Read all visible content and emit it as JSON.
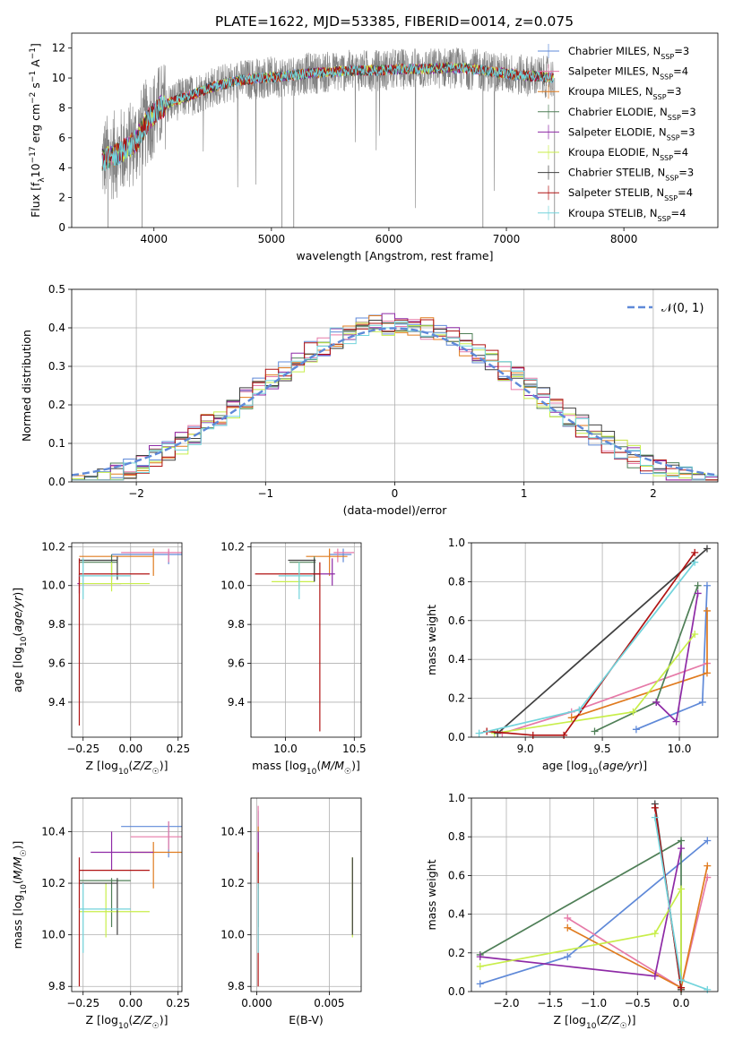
{
  "figure": {
    "title": "PLATE=1622, MJD=53385, FIBERID=0014, z=0.075",
    "models": [
      {
        "name": "Chabrier MILES, N_SSP=3",
        "color": "#5f89d8"
      },
      {
        "name": "Salpeter MILES, N_SSP=4",
        "color": "#e67aa8"
      },
      {
        "name": "Kroupa MILES, N_SSP=3",
        "color": "#e07b1f"
      },
      {
        "name": "Chabrier ELODIE, N_SSP=3",
        "color": "#4f7f57"
      },
      {
        "name": "Salpeter ELODIE, N_SSP=3",
        "color": "#8e2aa6"
      },
      {
        "name": "Kroupa ELODIE, N_SSP=4",
        "color": "#c8ee4a"
      },
      {
        "name": "Chabrier STELIB, N_SSP=3",
        "color": "#404040"
      },
      {
        "name": "Salpeter STELIB, N_SSP=4",
        "color": "#b01313"
      },
      {
        "name": "Kroupa STELIB, N_SSP=4",
        "color": "#72d4dc"
      }
    ]
  },
  "chart_data": [
    {
      "id": "spectrum",
      "type": "line",
      "xlabel": "wavelength [Angstrom, rest frame]",
      "ylabel": "Flux [fλ10^-17 erg cm^-2 s^-1 A^-1]",
      "xlim": [
        3300,
        8800
      ],
      "ylim": [
        0,
        13
      ],
      "xticks": [
        4000,
        5000,
        6000,
        7000,
        8000
      ],
      "yticks": [
        0,
        2,
        4,
        6,
        8,
        10,
        12
      ],
      "legend_position": "right",
      "legend": [
        {
          "prefix": "Chabrier MILES, N",
          "sub": "SSP",
          "suffix": "=3"
        },
        {
          "prefix": "Salpeter MILES, N",
          "sub": "SSP",
          "suffix": "=4"
        },
        {
          "prefix": "Kroupa MILES, N",
          "sub": "SSP",
          "suffix": "=3"
        },
        {
          "prefix": "Chabrier ELODIE, N",
          "sub": "SSP",
          "suffix": "=3"
        },
        {
          "prefix": "Salpeter ELODIE, N",
          "sub": "SSP",
          "suffix": "=3"
        },
        {
          "prefix": "Kroupa ELODIE, N",
          "sub": "SSP",
          "suffix": "=4"
        },
        {
          "prefix": "Chabrier STELIB, N",
          "sub": "SSP",
          "suffix": "=3"
        },
        {
          "prefix": "Salpeter STELIB, N",
          "sub": "SSP",
          "suffix": "=4"
        },
        {
          "prefix": "Kroupa STELIB, N",
          "sub": "SSP",
          "suffix": "=4"
        }
      ],
      "data_color": "#808080",
      "continuum": [
        [
          3560,
          4.5
        ],
        [
          3650,
          4.8
        ],
        [
          3750,
          5.2
        ],
        [
          3850,
          5.8
        ],
        [
          3950,
          7.2
        ],
        [
          4050,
          8.0
        ],
        [
          4150,
          8.4
        ],
        [
          4300,
          8.8
        ],
        [
          4500,
          9.4
        ],
        [
          4700,
          9.8
        ],
        [
          4900,
          10.0
        ],
        [
          5100,
          10.1
        ],
        [
          5300,
          10.3
        ],
        [
          5500,
          10.4
        ],
        [
          5700,
          10.5
        ],
        [
          5900,
          10.5
        ],
        [
          6100,
          10.6
        ],
        [
          6300,
          10.6
        ],
        [
          6500,
          10.7
        ],
        [
          6700,
          10.6
        ],
        [
          6900,
          10.4
        ],
        [
          7100,
          10.2
        ],
        [
          7300,
          10.1
        ],
        [
          7400,
          10.0
        ]
      ]
    },
    {
      "id": "residuals",
      "type": "histogram",
      "xlabel": "(data-model)/error",
      "ylabel": "Normed distribution",
      "xlim": [
        -2.5,
        2.5
      ],
      "ylim": [
        0,
        0.5
      ],
      "xticks": [
        -2,
        -1,
        0,
        1,
        2
      ],
      "yticks": [
        0.0,
        0.1,
        0.2,
        0.3,
        0.4,
        0.5
      ],
      "legend": "𝒩(0, 1)",
      "legend_position": "upper right",
      "gaussian": {
        "mean": 0,
        "sigma": 1,
        "color": "#5f89d8"
      },
      "bin_width": 0.1
    },
    {
      "id": "age-Z",
      "type": "errorbar",
      "xlabel": "Z [log10(Z/Z☉)]",
      "ylabel": "age  [log10(age/yr)]",
      "xlim": [
        -0.31,
        0.27
      ],
      "ylim": [
        9.22,
        10.22
      ],
      "xticks": [
        -0.25,
        0.0,
        0.25
      ],
      "yticks": [
        9.4,
        9.6,
        9.8,
        10.0,
        10.2
      ],
      "points": [
        {
          "x": 0.2,
          "xlo": -0.1,
          "xhi": 0.27,
          "y": 10.16,
          "ylo": 10.11,
          "yhi": 10.18
        },
        {
          "x": 0.2,
          "xlo": -0.05,
          "xhi": 0.27,
          "y": 10.17,
          "ylo": 10.12,
          "yhi": 10.19
        },
        {
          "x": 0.12,
          "xlo": -0.27,
          "xhi": 0.12,
          "y": 10.15,
          "ylo": 10.05,
          "yhi": 10.19
        },
        {
          "x": -0.1,
          "xlo": -0.27,
          "xhi": -0.07,
          "y": 10.12,
          "ylo": 10.03,
          "yhi": 10.16
        },
        {
          "x": -0.27,
          "xlo": -0.28,
          "xhi": -0.05,
          "y": 10.01,
          "ylo": 9.96,
          "yhi": 10.06
        },
        {
          "x": -0.1,
          "xlo": -0.27,
          "xhi": 0.1,
          "y": 10.01,
          "ylo": 9.97,
          "yhi": 10.12
        },
        {
          "x": -0.07,
          "xlo": -0.27,
          "xhi": -0.07,
          "y": 10.13,
          "ylo": 10.03,
          "yhi": 10.15
        },
        {
          "x": -0.27,
          "xlo": -0.27,
          "xhi": 0.1,
          "y": 10.06,
          "ylo": 9.28,
          "yhi": 10.14
        },
        {
          "x": -0.25,
          "xlo": -0.27,
          "xhi": 0.0,
          "y": 10.05,
          "ylo": 9.93,
          "yhi": 10.14
        }
      ]
    },
    {
      "id": "age-mass",
      "type": "errorbar",
      "xlabel": "mass [log10(M/M☉)]",
      "ylabel": "",
      "xlim": [
        9.75,
        10.55
      ],
      "ylim": [
        9.22,
        10.22
      ],
      "xticks": [
        10.0,
        10.5
      ],
      "yticks": [
        9.4,
        9.6,
        9.8,
        10.0,
        10.2
      ],
      "points": [
        {
          "x": 10.42,
          "xlo": 10.32,
          "xhi": 10.48,
          "y": 10.16,
          "ylo": 10.12,
          "yhi": 10.19
        },
        {
          "x": 10.38,
          "xlo": 10.35,
          "xhi": 10.5,
          "y": 10.17,
          "ylo": 10.12,
          "yhi": 10.19
        },
        {
          "x": 10.32,
          "xlo": 10.15,
          "xhi": 10.45,
          "y": 10.15,
          "ylo": 10.05,
          "yhi": 10.19
        },
        {
          "x": 10.21,
          "xlo": 10.03,
          "xhi": 10.22,
          "y": 10.12,
          "ylo": 10.02,
          "yhi": 10.15
        },
        {
          "x": 10.34,
          "xlo": 10.2,
          "xhi": 10.36,
          "y": 10.06,
          "ylo": 10.0,
          "yhi": 10.14
        },
        {
          "x": 10.1,
          "xlo": 9.9,
          "xhi": 10.21,
          "y": 10.02,
          "ylo": 9.98,
          "yhi": 10.12
        },
        {
          "x": 10.21,
          "xlo": 10.02,
          "xhi": 10.22,
          "y": 10.13,
          "ylo": 10.02,
          "yhi": 10.14
        },
        {
          "x": 10.25,
          "xlo": 9.78,
          "xhi": 10.25,
          "y": 10.06,
          "ylo": 9.25,
          "yhi": 10.12
        },
        {
          "x": 10.1,
          "xlo": 9.95,
          "xhi": 10.2,
          "y": 10.05,
          "ylo": 9.93,
          "yhi": 10.12
        }
      ]
    },
    {
      "id": "weight-age",
      "type": "line",
      "xlabel": "age  [log10(age/yr)]",
      "ylabel": "mass weight",
      "xlim": [
        8.65,
        10.25
      ],
      "ylim": [
        0,
        1
      ],
      "xticks": [
        9.0,
        9.5,
        10.0
      ],
      "yticks": [
        0.0,
        0.2,
        0.4,
        0.6,
        0.8,
        1.0
      ],
      "series": [
        {
          "points": [
            [
              9.72,
              0.04
            ],
            [
              10.15,
              0.18
            ],
            [
              10.18,
              0.78
            ]
          ]
        },
        {
          "points": [
            [
              8.85,
              0.02
            ],
            [
              9.3,
              0.13
            ],
            [
              10.18,
              0.38
            ]
          ]
        },
        {
          "points": [
            [
              9.3,
              0.1
            ],
            [
              10.18,
              0.33
            ],
            [
              10.18,
              0.65
            ]
          ]
        },
        {
          "points": [
            [
              9.45,
              0.03
            ],
            [
              9.85,
              0.18
            ],
            [
              10.12,
              0.78
            ]
          ]
        },
        {
          "points": [
            [
              9.85,
              0.18
            ],
            [
              9.98,
              0.08
            ],
            [
              10.12,
              0.74
            ]
          ]
        },
        {
          "points": [
            [
              8.8,
              0.02
            ],
            [
              9.7,
              0.13
            ],
            [
              10.1,
              0.53
            ]
          ]
        },
        {
          "points": [
            [
              8.82,
              0.02
            ],
            [
              10.18,
              0.97
            ]
          ]
        },
        {
          "points": [
            [
              8.75,
              0.03
            ],
            [
              9.05,
              0.01
            ],
            [
              9.25,
              0.01
            ],
            [
              10.1,
              0.95
            ]
          ]
        },
        {
          "points": [
            [
              8.7,
              0.02
            ],
            [
              9.35,
              0.14
            ],
            [
              10.1,
              0.9
            ]
          ]
        }
      ]
    },
    {
      "id": "mass-Z",
      "type": "errorbar",
      "xlabel": "Z [log10(Z/Z☉)]",
      "ylabel": "mass [log10(M/M☉)]",
      "xlim": [
        -0.31,
        0.27
      ],
      "ylim": [
        9.78,
        10.53
      ],
      "xticks": [
        -0.25,
        0.0,
        0.25
      ],
      "yticks": [
        9.8,
        10.0,
        10.2,
        10.4
      ],
      "points": [
        {
          "x": 0.2,
          "xlo": -0.05,
          "xhi": 0.27,
          "y": 10.42,
          "ylo": 10.3,
          "yhi": 10.44
        },
        {
          "x": 0.2,
          "xlo": 0.0,
          "xhi": 0.27,
          "y": 10.38,
          "ylo": 10.33,
          "yhi": 10.44
        },
        {
          "x": 0.12,
          "xlo": 0.0,
          "xhi": 0.27,
          "y": 10.32,
          "ylo": 10.18,
          "yhi": 10.36
        },
        {
          "x": -0.1,
          "xlo": -0.27,
          "xhi": 0.0,
          "y": 10.21,
          "ylo": 10.03,
          "yhi": 10.22
        },
        {
          "x": -0.1,
          "xlo": -0.21,
          "xhi": 0.12,
          "y": 10.32,
          "ylo": 10.25,
          "yhi": 10.4
        },
        {
          "x": -0.13,
          "xlo": -0.27,
          "xhi": 0.1,
          "y": 10.09,
          "ylo": 9.99,
          "yhi": 10.2
        },
        {
          "x": -0.07,
          "xlo": -0.27,
          "xhi": -0.07,
          "y": 10.2,
          "ylo": 10.0,
          "yhi": 10.22
        },
        {
          "x": -0.27,
          "xlo": -0.27,
          "xhi": 0.1,
          "y": 10.25,
          "ylo": 9.8,
          "yhi": 10.3
        },
        {
          "x": -0.25,
          "xlo": -0.27,
          "xhi": 0.0,
          "y": 10.1,
          "ylo": 9.93,
          "yhi": 10.2
        }
      ]
    },
    {
      "id": "mass-EBV",
      "type": "errorbar",
      "xlabel": "E(B-V)",
      "ylabel": "",
      "xlim": [
        -0.0004,
        0.0072
      ],
      "ylim": [
        9.78,
        10.53
      ],
      "xticks": [
        0.0,
        0.005
      ],
      "yticks": [
        9.8,
        10.0,
        10.2,
        10.4
      ],
      "points": [
        {
          "x": 0.0001,
          "y": 10.42,
          "ylo": 10.33,
          "yhi": 10.48
        },
        {
          "x": 0.0001,
          "y": 10.38,
          "ylo": 10.3,
          "yhi": 10.5
        },
        {
          "x": 0.0001,
          "y": 10.32,
          "ylo": 10.18,
          "yhi": 10.42
        },
        {
          "x": 0.0001,
          "y": 10.21,
          "ylo": 10.03,
          "yhi": 10.22
        },
        {
          "x": 0.0001,
          "y": 10.32,
          "ylo": 10.22,
          "yhi": 10.4
        },
        {
          "x": 0.0066,
          "y": 10.09,
          "ylo": 9.99,
          "yhi": 10.3
        },
        {
          "x": 0.0066,
          "y": 10.2,
          "ylo": 10.0,
          "yhi": 10.3
        },
        {
          "x": 0.0001,
          "y": 10.25,
          "ylo": 9.8,
          "yhi": 10.32
        },
        {
          "x": 0.0001,
          "y": 10.1,
          "ylo": 9.93,
          "yhi": 10.2
        }
      ]
    },
    {
      "id": "weight-Z",
      "type": "line",
      "xlabel": "Z [log10(Z/Z☉)]",
      "ylabel": "mass weight",
      "xlim": [
        -2.4,
        0.42
      ],
      "ylim": [
        0,
        1
      ],
      "xticks": [
        -2.0,
        -1.5,
        -1.0,
        -0.5,
        0.0
      ],
      "yticks": [
        0.0,
        0.2,
        0.4,
        0.6,
        0.8,
        1.0
      ],
      "series": [
        {
          "points": [
            [
              -2.3,
              0.04
            ],
            [
              -1.3,
              0.18
            ],
            [
              0.3,
              0.78
            ]
          ]
        },
        {
          "points": [
            [
              -1.3,
              0.38
            ],
            [
              0.0,
              0.02
            ],
            [
              0.3,
              0.59
            ]
          ]
        },
        {
          "points": [
            [
              -1.3,
              0.33
            ],
            [
              0.0,
              0.02
            ],
            [
              0.3,
              0.65
            ]
          ]
        },
        {
          "points": [
            [
              -2.3,
              0.19
            ],
            [
              0.0,
              0.78
            ],
            [
              0.0,
              0.01
            ]
          ]
        },
        {
          "points": [
            [
              -2.3,
              0.18
            ],
            [
              -0.3,
              0.08
            ],
            [
              0.0,
              0.74
            ]
          ]
        },
        {
          "points": [
            [
              -2.3,
              0.13
            ],
            [
              -0.3,
              0.3
            ],
            [
              0.0,
              0.53
            ],
            [
              0.0,
              0.01
            ]
          ]
        },
        {
          "points": [
            [
              -0.3,
              0.97
            ],
            [
              0.0,
              0.01
            ]
          ]
        },
        {
          "points": [
            [
              -0.3,
              0.95
            ],
            [
              0.0,
              0.02
            ]
          ]
        },
        {
          "points": [
            [
              -0.3,
              0.9
            ],
            [
              0.0,
              0.06
            ],
            [
              0.3,
              0.01
            ]
          ]
        }
      ]
    }
  ]
}
